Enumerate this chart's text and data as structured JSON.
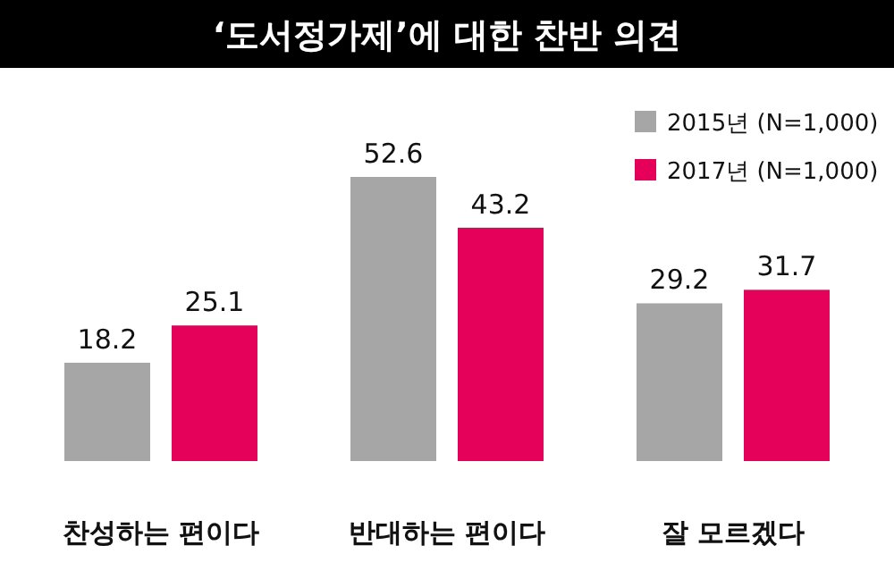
{
  "chart_data": {
    "type": "bar",
    "title": "‘도서정가제’에 대한 찬반 의견",
    "categories": [
      "찬성하는 편이다",
      "반대하는 편이다",
      "잘 모르겠다"
    ],
    "series": [
      {
        "name": "2015년 (N=1,000)",
        "color": "#a6a6a6",
        "values": [
          18.2,
          52.6,
          29.2
        ]
      },
      {
        "name": "2017년 (N=1,000)",
        "color": "#e5005a",
        "values": [
          25.1,
          43.2,
          31.7
        ]
      }
    ],
    "data_labels": true,
    "legend": "top right"
  }
}
